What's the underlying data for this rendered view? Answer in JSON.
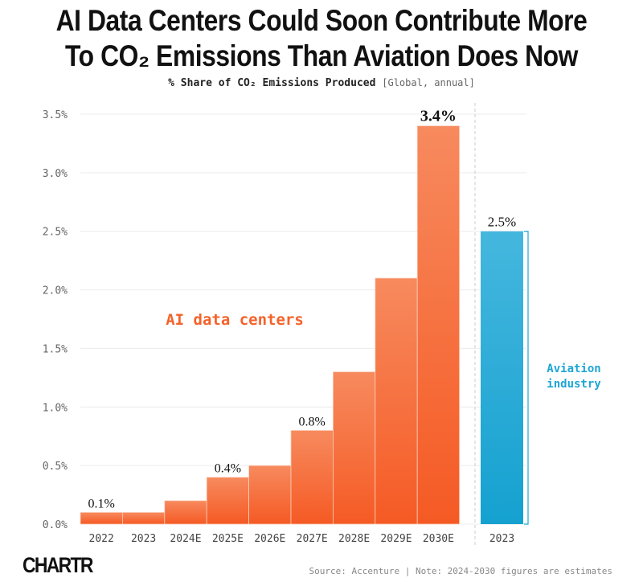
{
  "title_line1": "AI Data Centers Could Soon Contribute More",
  "title_line2": "To CO₂ Emissions Than Aviation Does Now",
  "subtitle": "% Share of CO₂ Emissions Produced",
  "subtitle_note": "[Global, annual]",
  "logo": "CHARTR",
  "source": "Source: Accenture | Note: 2024-2030 figures are estimates",
  "chart_data": {
    "type": "bar",
    "title": "AI Data Centers Could Soon Contribute More To CO₂ Emissions Than Aviation Does Now",
    "subtitle": "% Share of CO₂ Emissions Produced [Global, annual]",
    "ylim": [
      0,
      3.5
    ],
    "yticks": [
      "0.0%",
      "0.5%",
      "1.0%",
      "1.5%",
      "2.0%",
      "2.5%",
      "3.0%",
      "3.5%"
    ],
    "ytick_values": [
      0,
      0.5,
      1.0,
      1.5,
      2.0,
      2.5,
      3.0,
      3.5
    ],
    "grid": true,
    "series": [
      {
        "name": "AI data centers",
        "color": "#F4622A",
        "categories": [
          "2022",
          "2023",
          "2024E",
          "2025E",
          "2026E",
          "2027E",
          "2028E",
          "2029E",
          "2030E"
        ],
        "values": [
          0.1,
          0.1,
          0.2,
          0.4,
          0.5,
          0.8,
          1.3,
          2.1,
          3.4
        ],
        "data_labels": [
          "0.1%",
          "",
          "",
          "0.4%",
          "",
          "0.8%",
          "",
          "",
          "3.4%"
        ]
      },
      {
        "name": "Aviation industry",
        "color": "#1DA6D4",
        "categories": [
          "2023"
        ],
        "values": [
          2.5
        ],
        "data_labels": [
          "2.5%"
        ]
      }
    ]
  }
}
